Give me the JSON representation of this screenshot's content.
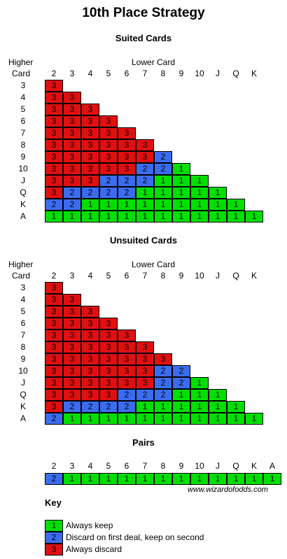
{
  "title": "10th Place Strategy",
  "colors": {
    "1": "#00e000",
    "2": "#3b6cf0",
    "3": "#e01010"
  },
  "suited": {
    "heading": "Suited Cards",
    "higher_label_1": "Higher",
    "higher_label_2": "Card",
    "lower_label": "Lower Card",
    "columns": [
      "2",
      "3",
      "4",
      "5",
      "6",
      "7",
      "8",
      "9",
      "10",
      "J",
      "Q",
      "K"
    ],
    "rows": [
      {
        "label": "3",
        "cells": [
          "3"
        ]
      },
      {
        "label": "4",
        "cells": [
          "3",
          "3"
        ]
      },
      {
        "label": "5",
        "cells": [
          "3",
          "3",
          "3"
        ]
      },
      {
        "label": "6",
        "cells": [
          "3",
          "3",
          "3",
          "3"
        ]
      },
      {
        "label": "7",
        "cells": [
          "3",
          "3",
          "3",
          "3",
          "3"
        ]
      },
      {
        "label": "8",
        "cells": [
          "3",
          "3",
          "3",
          "3",
          "3",
          "3"
        ]
      },
      {
        "label": "9",
        "cells": [
          "3",
          "3",
          "3",
          "3",
          "3",
          "3",
          "2"
        ]
      },
      {
        "label": "10",
        "cells": [
          "3",
          "3",
          "3",
          "3",
          "3",
          "2",
          "2",
          "1"
        ]
      },
      {
        "label": "J",
        "cells": [
          "3",
          "3",
          "3",
          "2",
          "2",
          "2",
          "1",
          "1",
          "1"
        ]
      },
      {
        "label": "Q",
        "cells": [
          "3",
          "2",
          "2",
          "2",
          "2",
          "1",
          "1",
          "1",
          "1",
          "1"
        ]
      },
      {
        "label": "K",
        "cells": [
          "2",
          "2",
          "1",
          "1",
          "1",
          "1",
          "1",
          "1",
          "1",
          "1",
          "1"
        ]
      },
      {
        "label": "A",
        "cells": [
          "1",
          "1",
          "1",
          "1",
          "1",
          "1",
          "1",
          "1",
          "1",
          "1",
          "1",
          "1"
        ]
      }
    ]
  },
  "unsuited": {
    "heading": "Unsuited Cards",
    "higher_label_1": "Higher",
    "higher_label_2": "Card",
    "lower_label": "Lower Card",
    "columns": [
      "2",
      "3",
      "4",
      "5",
      "6",
      "7",
      "8",
      "9",
      "10",
      "J",
      "Q",
      "K"
    ],
    "rows": [
      {
        "label": "3",
        "cells": [
          "3"
        ]
      },
      {
        "label": "4",
        "cells": [
          "3",
          "3"
        ]
      },
      {
        "label": "5",
        "cells": [
          "3",
          "3",
          "3"
        ]
      },
      {
        "label": "6",
        "cells": [
          "3",
          "3",
          "3",
          "3"
        ]
      },
      {
        "label": "7",
        "cells": [
          "3",
          "3",
          "3",
          "3",
          "3"
        ]
      },
      {
        "label": "8",
        "cells": [
          "3",
          "3",
          "3",
          "3",
          "3",
          "3"
        ]
      },
      {
        "label": "9",
        "cells": [
          "3",
          "3",
          "3",
          "3",
          "3",
          "3",
          "3"
        ]
      },
      {
        "label": "10",
        "cells": [
          "3",
          "3",
          "3",
          "3",
          "3",
          "3",
          "2",
          "2"
        ]
      },
      {
        "label": "J",
        "cells": [
          "3",
          "3",
          "3",
          "3",
          "3",
          "3",
          "2",
          "2",
          "1"
        ]
      },
      {
        "label": "Q",
        "cells": [
          "3",
          "3",
          "3",
          "3",
          "2",
          "2",
          "2",
          "1",
          "1",
          "1"
        ]
      },
      {
        "label": "K",
        "cells": [
          "3",
          "2",
          "2",
          "2",
          "2",
          "1",
          "1",
          "1",
          "1",
          "1",
          "1"
        ]
      },
      {
        "label": "A",
        "cells": [
          "2",
          "1",
          "1",
          "1",
          "1",
          "1",
          "1",
          "1",
          "1",
          "1",
          "1",
          "1"
        ]
      }
    ]
  },
  "pairs": {
    "heading": "Pairs",
    "columns": [
      "2",
      "3",
      "4",
      "5",
      "6",
      "7",
      "8",
      "9",
      "10",
      "J",
      "Q",
      "K",
      "A"
    ],
    "cells": [
      "2",
      "1",
      "1",
      "1",
      "1",
      "1",
      "1",
      "1",
      "1",
      "1",
      "1",
      "1",
      "1"
    ]
  },
  "credit": "www.wizardofodds.com",
  "key": {
    "heading": "Key",
    "items": [
      {
        "value": "1",
        "text": "Always keep"
      },
      {
        "value": "2",
        "text": "Discard on first deal, keep on second"
      },
      {
        "value": "3",
        "text": "Always discard"
      }
    ]
  }
}
